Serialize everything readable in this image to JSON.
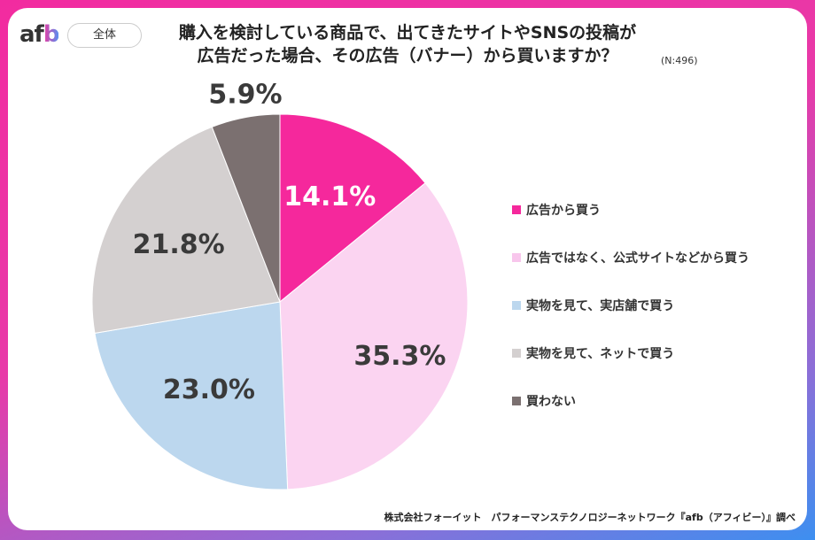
{
  "logo": "afb",
  "badge": "全体",
  "title_line1": "購入を検討している商品で、出てきたサイトやSNSの投稿が",
  "title_line2": "広告だった場合、その広告（バナー）から買いますか？",
  "sample": "(N:496)",
  "source": "株式会社フォーイット　パフォーマンステクノロジーネットワーク『afb（アフィビー）』調べ",
  "chart_data": {
    "type": "pie",
    "start": "top",
    "direction": "clockwise",
    "categories": [
      "広告から買う",
      "広告ではなく、公式サイトなどから買う",
      "実物を見て、実店舗で買う",
      "実物を見て、ネットで買う",
      "買わない"
    ],
    "values": [
      14.1,
      35.3,
      23.0,
      21.8,
      5.9
    ],
    "labels": [
      "14.1%",
      "35.3%",
      "23.0%",
      "21.8%",
      "5.9%"
    ],
    "colors": [
      "#f5289c",
      "#fbd4f1",
      "#bcd7ee",
      "#d4d0d0",
      "#7b7070"
    ],
    "label_colors": [
      "#ffffff",
      "#3a3a3a",
      "#3a3a3a",
      "#3a3a3a",
      "#3a3a3a"
    ],
    "legend_placement": "right"
  }
}
